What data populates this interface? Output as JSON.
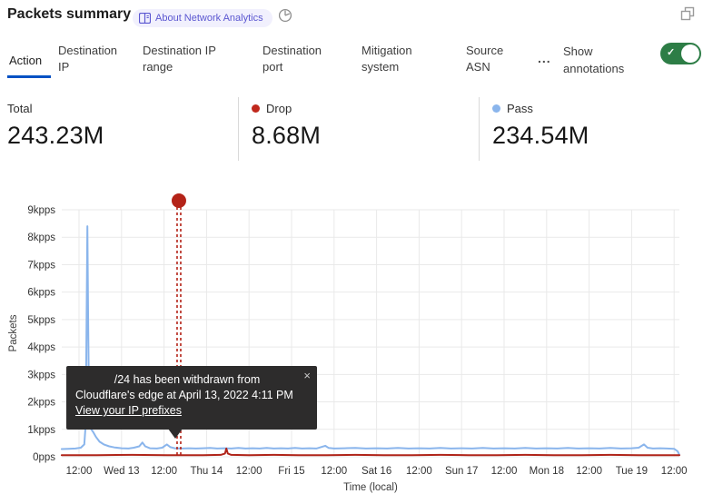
{
  "header": {
    "title": "Packets summary",
    "badge_label": "About Network Analytics",
    "icons": {
      "badge_icon": "book-icon",
      "time_icon": "clock-icon",
      "corner_icon": "popout-icon"
    }
  },
  "tabs": {
    "items": [
      {
        "label": "Action",
        "active": true
      },
      {
        "label": "Destination IP",
        "active": false
      },
      {
        "label": "Destination IP range",
        "active": false
      },
      {
        "label": "Destination port",
        "active": false
      },
      {
        "label": "Mitigation system",
        "active": false
      },
      {
        "label": "Source ASN",
        "active": false
      }
    ],
    "more_label": "...",
    "annotations_label": "Show annotations",
    "annotations_toggle_on": true,
    "toggle_color": "#2d7d46",
    "active_underline_color": "#0051c3"
  },
  "stats": [
    {
      "label": "Total",
      "value": "243.23M",
      "dot_color": null
    },
    {
      "label": "Drop",
      "value": "8.68M",
      "dot_color": "#c0281c"
    },
    {
      "label": "Pass",
      "value": "234.54M",
      "dot_color": "#8ab5ec"
    }
  ],
  "tooltip": {
    "line1": "/24 has been withdrawn from",
    "line2": "Cloudflare's edge at April 13, 2022 4:11 PM",
    "link": "View your IP prefixes",
    "close": "×"
  },
  "chart_data": {
    "type": "line",
    "xlabel": "Time (local)",
    "ylabel": "Packets",
    "x_unit_hours_from": "Apr 12 12:00 (first tick)",
    "x_domain_hours": [
      -4.9,
      169.5
    ],
    "x_ticks": [
      {
        "hour": 0,
        "label": "12:00"
      },
      {
        "hour": 12,
        "label": "Wed 13"
      },
      {
        "hour": 24,
        "label": "12:00"
      },
      {
        "hour": 36,
        "label": "Thu 14"
      },
      {
        "hour": 48,
        "label": "12:00"
      },
      {
        "hour": 60,
        "label": "Fri 15"
      },
      {
        "hour": 72,
        "label": "12:00"
      },
      {
        "hour": 84,
        "label": "Sat 16"
      },
      {
        "hour": 96,
        "label": "12:00"
      },
      {
        "hour": 108,
        "label": "Sun 17"
      },
      {
        "hour": 120,
        "label": "12:00"
      },
      {
        "hour": 132,
        "label": "Mon 18"
      },
      {
        "hour": 144,
        "label": "12:00"
      },
      {
        "hour": 156,
        "label": "Tue 19"
      },
      {
        "hour": 168,
        "label": "12:00"
      }
    ],
    "y_ticks": [
      "0pps",
      "1kpps",
      "2kpps",
      "3kpps",
      "4kpps",
      "5kpps",
      "6kpps",
      "7kpps",
      "8kpps",
      "9kpps"
    ],
    "y_max_kpps": 9,
    "grid_color": "#e9e9e9",
    "series": [
      {
        "name": "Pass",
        "color": "#8ab5ec",
        "points": [
          [
            -4.9,
            0.28
          ],
          [
            -3,
            0.29
          ],
          [
            -1,
            0.3
          ],
          [
            0.5,
            0.33
          ],
          [
            1.5,
            0.45
          ],
          [
            1.9,
            1.2
          ],
          [
            2.15,
            5.2
          ],
          [
            2.35,
            8.4
          ],
          [
            2.6,
            4.8
          ],
          [
            2.85,
            1.6
          ],
          [
            3.2,
            1.05
          ],
          [
            4,
            0.9
          ],
          [
            4.8,
            0.72
          ],
          [
            5.8,
            0.55
          ],
          [
            7,
            0.45
          ],
          [
            8.5,
            0.38
          ],
          [
            10,
            0.34
          ],
          [
            12,
            0.31
          ],
          [
            14,
            0.3
          ],
          [
            15.5,
            0.33
          ],
          [
            17,
            0.38
          ],
          [
            17.9,
            0.52
          ],
          [
            18.7,
            0.38
          ],
          [
            20,
            0.31
          ],
          [
            22,
            0.3
          ],
          [
            23.5,
            0.33
          ],
          [
            24.8,
            0.45
          ],
          [
            25.8,
            0.35
          ],
          [
            27,
            0.31
          ],
          [
            29,
            0.3
          ],
          [
            31,
            0.31
          ],
          [
            33,
            0.3
          ],
          [
            35,
            0.31
          ],
          [
            37,
            0.32
          ],
          [
            39,
            0.3
          ],
          [
            41,
            0.31
          ],
          [
            43,
            0.3
          ],
          [
            45,
            0.32
          ],
          [
            47,
            0.3
          ],
          [
            49,
            0.31
          ],
          [
            51,
            0.3
          ],
          [
            53,
            0.32
          ],
          [
            55,
            0.3
          ],
          [
            57,
            0.31
          ],
          [
            59,
            0.3
          ],
          [
            61,
            0.32
          ],
          [
            63,
            0.3
          ],
          [
            65,
            0.31
          ],
          [
            67,
            0.3
          ],
          [
            69.5,
            0.4
          ],
          [
            70.5,
            0.32
          ],
          [
            72,
            0.3
          ],
          [
            75,
            0.31
          ],
          [
            78,
            0.32
          ],
          [
            81,
            0.3
          ],
          [
            84,
            0.31
          ],
          [
            87,
            0.3
          ],
          [
            90,
            0.32
          ],
          [
            93,
            0.3
          ],
          [
            96,
            0.31
          ],
          [
            99,
            0.3
          ],
          [
            102,
            0.32
          ],
          [
            105,
            0.3
          ],
          [
            108,
            0.31
          ],
          [
            111,
            0.3
          ],
          [
            114,
            0.32
          ],
          [
            117,
            0.3
          ],
          [
            120,
            0.31
          ],
          [
            123,
            0.3
          ],
          [
            126,
            0.32
          ],
          [
            129,
            0.3
          ],
          [
            132,
            0.31
          ],
          [
            135,
            0.3
          ],
          [
            138,
            0.32
          ],
          [
            141,
            0.3
          ],
          [
            144,
            0.31
          ],
          [
            147,
            0.3
          ],
          [
            150,
            0.32
          ],
          [
            153,
            0.3
          ],
          [
            156,
            0.31
          ],
          [
            158,
            0.33
          ],
          [
            159.5,
            0.45
          ],
          [
            160.5,
            0.33
          ],
          [
            162,
            0.3
          ],
          [
            164,
            0.31
          ],
          [
            166,
            0.3
          ],
          [
            168,
            0.29
          ],
          [
            169,
            0.2
          ],
          [
            169.5,
            0.07
          ]
        ]
      },
      {
        "name": "Drop",
        "color": "#b02419",
        "points": [
          [
            -4.9,
            0.06
          ],
          [
            5,
            0.06
          ],
          [
            15,
            0.07
          ],
          [
            25,
            0.06
          ],
          [
            35,
            0.06
          ],
          [
            40,
            0.07
          ],
          [
            41.2,
            0.12
          ],
          [
            41.6,
            0.3
          ],
          [
            42,
            0.12
          ],
          [
            43,
            0.07
          ],
          [
            48,
            0.06
          ],
          [
            55,
            0.07
          ],
          [
            62,
            0.06
          ],
          [
            70,
            0.06
          ],
          [
            78,
            0.07
          ],
          [
            86,
            0.06
          ],
          [
            94,
            0.06
          ],
          [
            102,
            0.07
          ],
          [
            110,
            0.06
          ],
          [
            118,
            0.06
          ],
          [
            126,
            0.07
          ],
          [
            134,
            0.06
          ],
          [
            142,
            0.06
          ],
          [
            150,
            0.07
          ],
          [
            158,
            0.06
          ],
          [
            164,
            0.06
          ],
          [
            169.5,
            0.06
          ]
        ]
      }
    ],
    "annotation": {
      "hour": 28.2,
      "color": "#b42318",
      "marker": "red dot above double dashed vertical line",
      "text": "/24 has been withdrawn from Cloudflare's edge at April 13, 2022 4:11 PM"
    }
  }
}
